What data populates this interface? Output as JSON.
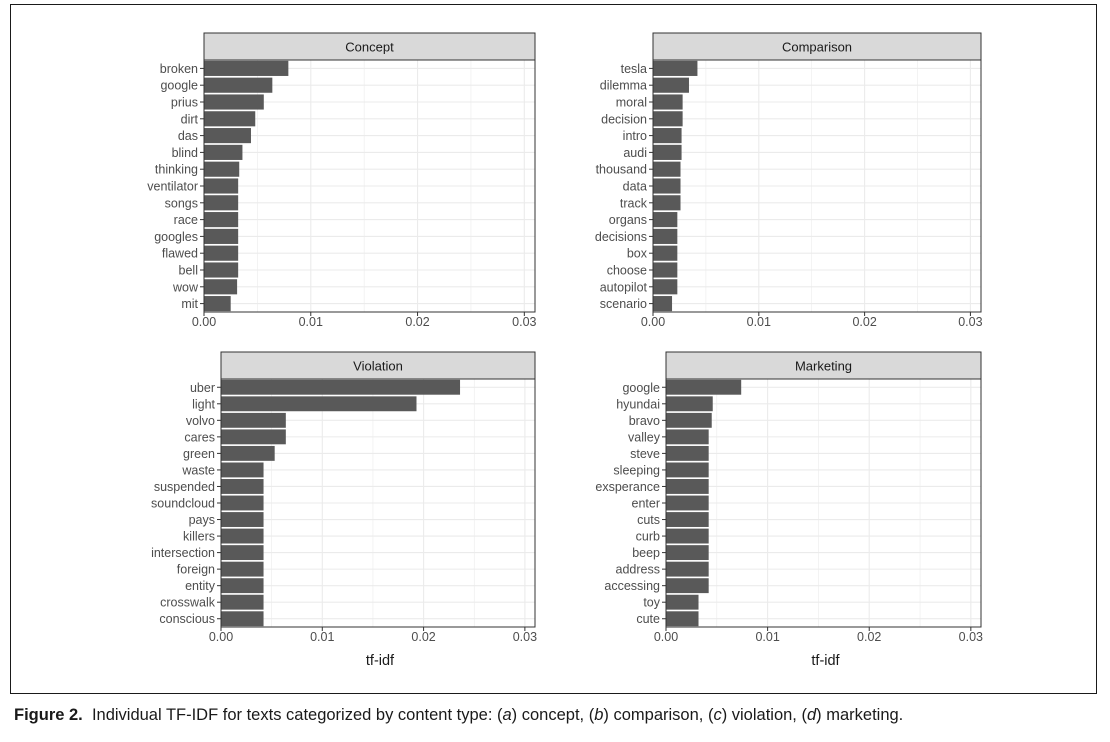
{
  "caption": {
    "label": "Figure 2.",
    "pre": "Individual TF-IDF for texts categorized by content type: (",
    "a": "a",
    "t1": ") concept, (",
    "b": "b",
    "t2": ") comparison, (",
    "c": "c",
    "t3": ") violation, (",
    "d": "d",
    "t4": ") marketing."
  },
  "colors": {
    "bar": "#595959",
    "strip_fill": "#d9d9d9",
    "grid": "#ebebeb",
    "panel_border": "#333333",
    "text": "#4d4d4d"
  },
  "chart_data": [
    {
      "type": "bar",
      "orientation": "horizontal",
      "title": "Concept",
      "xlabel": "",
      "xlim": [
        0,
        0.031
      ],
      "xticks": [
        "0.00",
        "0.01",
        "0.02",
        "0.03"
      ],
      "grid": true,
      "categories": [
        "broken",
        "google",
        "prius",
        "dirt",
        "das",
        "blind",
        "thinking",
        "ventilator",
        "songs",
        "race",
        "googles",
        "flawed",
        "bell",
        "wow",
        "mit"
      ],
      "values": [
        0.0079,
        0.0064,
        0.0056,
        0.0048,
        0.0044,
        0.0036,
        0.0033,
        0.0032,
        0.0032,
        0.0032,
        0.0032,
        0.0032,
        0.0032,
        0.0031,
        0.0025
      ]
    },
    {
      "type": "bar",
      "orientation": "horizontal",
      "title": "Comparison",
      "xlabel": "",
      "xlim": [
        0,
        0.031
      ],
      "xticks": [
        "0.00",
        "0.01",
        "0.02",
        "0.03"
      ],
      "grid": true,
      "categories": [
        "tesla",
        "dilemma",
        "moral",
        "decision",
        "intro",
        "audi",
        "thousand",
        "data",
        "track",
        "organs",
        "decisions",
        "box",
        "choose",
        "autopilot",
        "scenario"
      ],
      "values": [
        0.0042,
        0.0034,
        0.0028,
        0.0028,
        0.0027,
        0.0027,
        0.0026,
        0.0026,
        0.0026,
        0.0023,
        0.0023,
        0.0023,
        0.0023,
        0.0023,
        0.0018
      ]
    },
    {
      "type": "bar",
      "orientation": "horizontal",
      "title": "Violation",
      "xlabel": "tf-idf",
      "xlim": [
        0,
        0.031
      ],
      "xticks": [
        "0.00",
        "0.01",
        "0.02",
        "0.03"
      ],
      "grid": true,
      "categories": [
        "uber",
        "light",
        "volvo",
        "cares",
        "green",
        "waste",
        "suspended",
        "soundcloud",
        "pays",
        "killers",
        "intersection",
        "foreign",
        "entity",
        "crosswalk",
        "conscious"
      ],
      "values": [
        0.0236,
        0.0193,
        0.0064,
        0.0064,
        0.0053,
        0.0042,
        0.0042,
        0.0042,
        0.0042,
        0.0042,
        0.0042,
        0.0042,
        0.0042,
        0.0042,
        0.0042
      ]
    },
    {
      "type": "bar",
      "orientation": "horizontal",
      "title": "Marketing",
      "xlabel": "tf-idf",
      "xlim": [
        0,
        0.031
      ],
      "xticks": [
        "0.00",
        "0.01",
        "0.02",
        "0.03"
      ],
      "grid": true,
      "categories": [
        "google",
        "hyundai",
        "bravo",
        "valley",
        "steve",
        "sleeping",
        "exsperance",
        "enter",
        "cuts",
        "curb",
        "beep",
        "address",
        "accessing",
        "toy",
        "cute"
      ],
      "values": [
        0.0074,
        0.0046,
        0.0045,
        0.0042,
        0.0042,
        0.0042,
        0.0042,
        0.0042,
        0.0042,
        0.0042,
        0.0042,
        0.0042,
        0.0042,
        0.0032,
        0.0032
      ]
    }
  ]
}
